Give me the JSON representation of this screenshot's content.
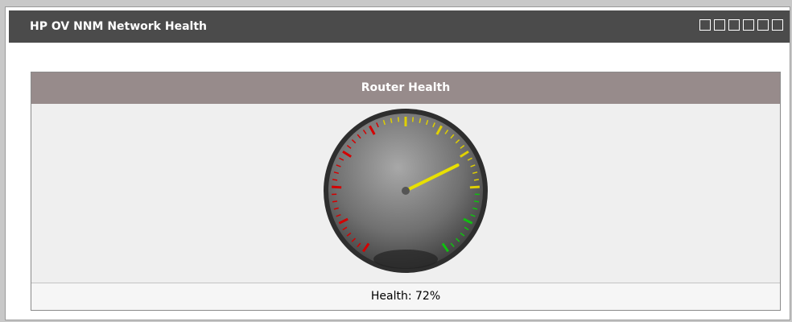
{
  "window": {
    "title": "HP OV NNM Network Health"
  },
  "panel": {
    "title": "Router Health"
  },
  "gauge": {
    "caption": "Health: 72%",
    "value": 72,
    "range": [
      0,
      100
    ],
    "bands": [
      {
        "to": 42,
        "color": "#d40000"
      },
      {
        "to": 80,
        "color": "#e0d000"
      },
      {
        "to": 100,
        "color": "#10c010"
      }
    ],
    "needle_color": "#e8e000"
  }
}
